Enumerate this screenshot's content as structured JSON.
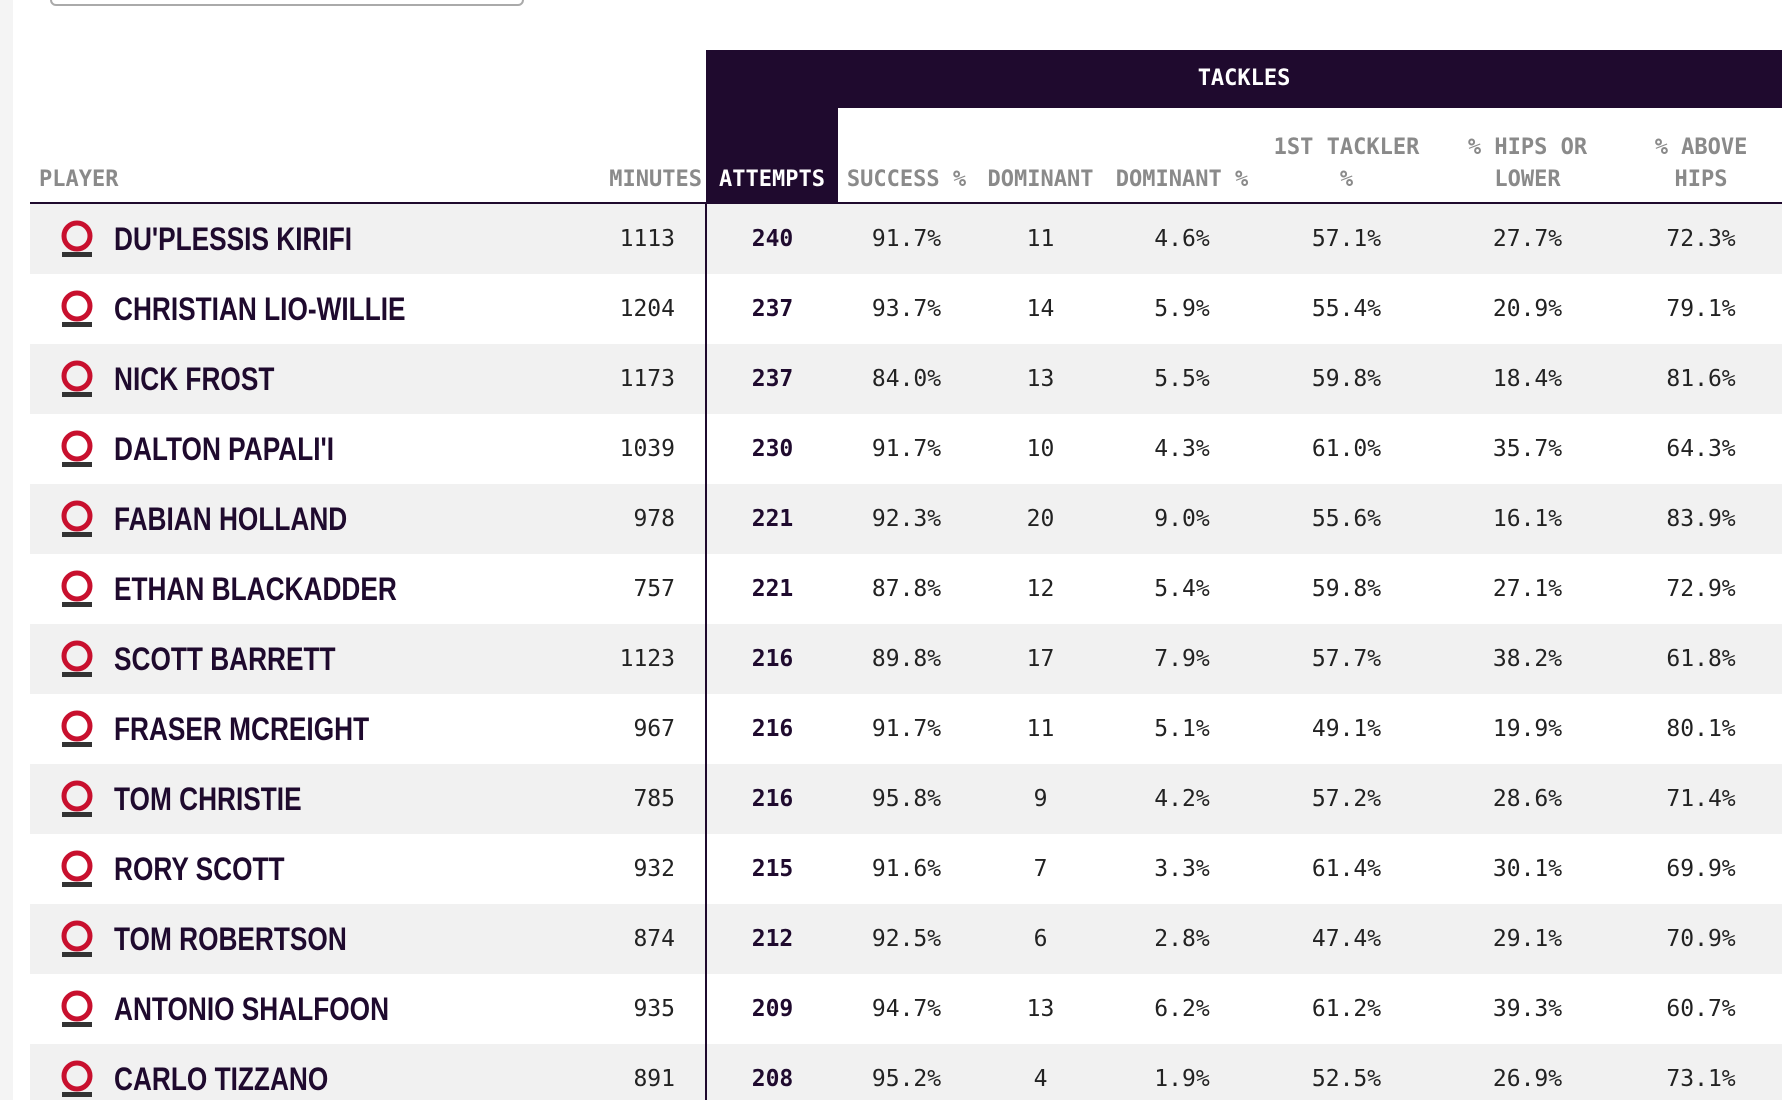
{
  "table": {
    "group_header": "TACKLES",
    "columns": [
      "PLAYER",
      "MINUTES",
      "ATTEMPTS",
      "SUCCESS %",
      "DOMINANT",
      "DOMINANT %",
      "1ST TACKLER %",
      "% HIPS OR LOWER",
      "% ABOVE HIPS"
    ],
    "rows": [
      [
        "DU'PLESSIS KIRIFI",
        "1113",
        "240",
        "91.7%",
        "11",
        "4.6%",
        "57.1%",
        "27.7%",
        "72.3%"
      ],
      [
        "CHRISTIAN LIO-WILLIE",
        "1204",
        "237",
        "93.7%",
        "14",
        "5.9%",
        "55.4%",
        "20.9%",
        "79.1%"
      ],
      [
        "NICK FROST",
        "1173",
        "237",
        "84.0%",
        "13",
        "5.5%",
        "59.8%",
        "18.4%",
        "81.6%"
      ],
      [
        "DALTON PAPALI'I",
        "1039",
        "230",
        "91.7%",
        "10",
        "4.3%",
        "61.0%",
        "35.7%",
        "64.3%"
      ],
      [
        "FABIAN HOLLAND",
        "978",
        "221",
        "92.3%",
        "20",
        "9.0%",
        "55.6%",
        "16.1%",
        "83.9%"
      ],
      [
        "ETHAN BLACKADDER",
        "757",
        "221",
        "87.8%",
        "12",
        "5.4%",
        "59.8%",
        "27.1%",
        "72.9%"
      ],
      [
        "SCOTT BARRETT",
        "1123",
        "216",
        "89.8%",
        "17",
        "7.9%",
        "57.7%",
        "38.2%",
        "61.8%"
      ],
      [
        "FRASER MCREIGHT",
        "967",
        "216",
        "91.7%",
        "11",
        "5.1%",
        "49.1%",
        "19.9%",
        "80.1%"
      ],
      [
        "TOM CHRISTIE",
        "785",
        "216",
        "95.8%",
        "9",
        "4.2%",
        "57.2%",
        "28.6%",
        "71.4%"
      ],
      [
        "RORY SCOTT",
        "932",
        "215",
        "91.6%",
        "7",
        "3.3%",
        "61.4%",
        "30.1%",
        "69.9%"
      ],
      [
        "TOM ROBERTSON",
        "874",
        "212",
        "92.5%",
        "6",
        "2.8%",
        "47.4%",
        "29.1%",
        "70.9%"
      ],
      [
        "ANTONIO SHALFOON",
        "935",
        "209",
        "94.7%",
        "13",
        "6.2%",
        "61.2%",
        "39.3%",
        "60.7%"
      ],
      [
        "CARLO TIZZANO",
        "891",
        "208",
        "95.2%",
        "4",
        "1.9%",
        "52.5%",
        "26.9%",
        "73.1%"
      ]
    ]
  }
}
